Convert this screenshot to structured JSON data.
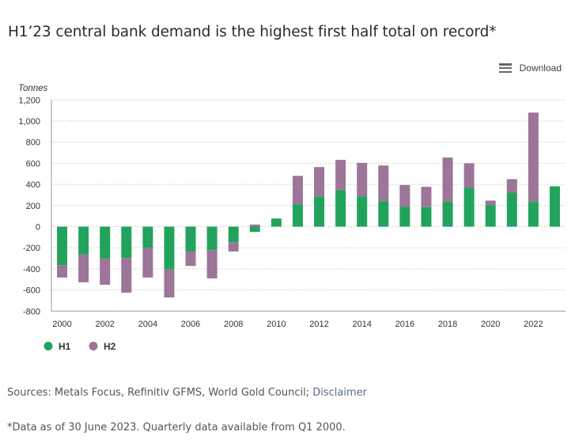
{
  "title": "H1’23 central bank demand is the highest first half total on record*",
  "download_label": "Download",
  "footer": {
    "sources_text": "Sources: Metals Focus, Refinitiv GFMS, World Gold Council; ",
    "disclaimer_link": "Disclaimer",
    "note": "*Data as of 30 June 2023. Quarterly data available from Q1 2000."
  },
  "chart_data": {
    "type": "bar",
    "stacked": true,
    "title": "H1’23 central bank demand is the highest first half total on record*",
    "xlabel": "",
    "ylabel": "Tonnes",
    "ylim": [
      -800,
      1200
    ],
    "yticks": [
      -800,
      -600,
      -400,
      -200,
      0,
      200,
      400,
      600,
      800,
      1000,
      1200
    ],
    "ytick_labels": [
      "-800",
      "-600",
      "-400",
      "-200",
      "0",
      "200",
      "400",
      "600",
      "800",
      "1,000",
      "1,200"
    ],
    "categories": [
      "2000",
      "2001",
      "2002",
      "2003",
      "2004",
      "2005",
      "2006",
      "2007",
      "2008",
      "2009",
      "2010",
      "2011",
      "2012",
      "2013",
      "2014",
      "2015",
      "2016",
      "2017",
      "2018",
      "2019",
      "2020",
      "2021",
      "2022",
      "2023"
    ],
    "xtick_labels": [
      "2000",
      "2002",
      "2004",
      "2006",
      "2008",
      "2010",
      "2012",
      "2014",
      "2016",
      "2018",
      "2020",
      "2022"
    ],
    "grid": true,
    "legend_position": "bottom-left",
    "series": [
      {
        "name": "H1",
        "color": "#22a35b",
        "values": [
          -365,
          -265,
          -302,
          -297,
          -200,
          -407,
          -237,
          -222,
          -148,
          -50,
          77,
          212,
          287,
          347,
          287,
          242,
          190,
          185,
          235,
          370,
          204,
          322,
          235,
          382
        ]
      },
      {
        "name": "H2",
        "color": "#9c7599",
        "values": [
          -117,
          -262,
          -248,
          -328,
          -282,
          -263,
          -135,
          -268,
          -87,
          20,
          0,
          269,
          277,
          285,
          317,
          337,
          204,
          192,
          419,
          230,
          43,
          128,
          845,
          null
        ]
      }
    ]
  }
}
